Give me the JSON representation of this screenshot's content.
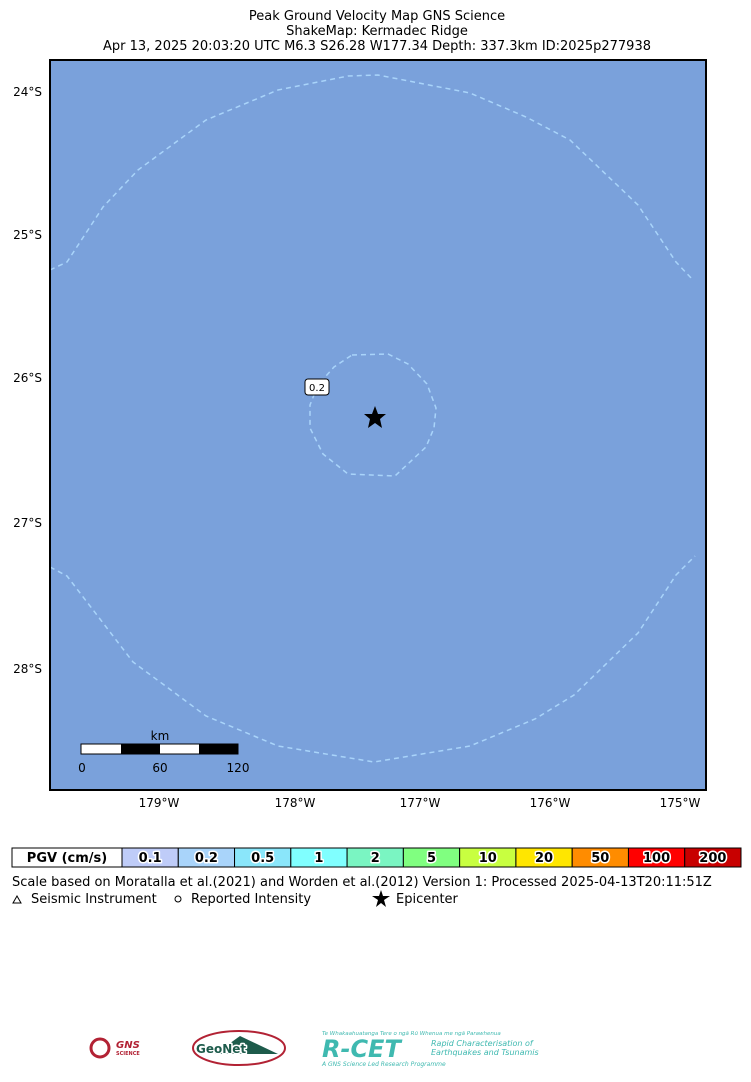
{
  "header": {
    "title": "Peak Ground Velocity Map GNS Science",
    "subtitle": "ShakeMap: Kermadec Ridge",
    "event": "Apr 13, 2025 20:03:20 UTC M6.3 S26.28 W177.34 Depth: 337.3km ID:2025p277938"
  },
  "map": {
    "lat_labels": [
      "24°S",
      "25°S",
      "26°S",
      "27°S",
      "28°S"
    ],
    "lon_labels": [
      "179°W",
      "178°W",
      "177°W",
      "176°W",
      "175°W"
    ],
    "contour_label": "0.2",
    "scale_bar": {
      "unit": "km",
      "ticks": [
        "0",
        "60",
        "120"
      ]
    },
    "water_color": "#7aa1db",
    "contour_color": "#a9d4fa"
  },
  "legend": {
    "title": "PGV (cm/s)",
    "bins": [
      {
        "label": "0.1",
        "color": "#bfccf8"
      },
      {
        "label": "0.2",
        "color": "#a9d4fa"
      },
      {
        "label": "0.5",
        "color": "#8ae6fa"
      },
      {
        "label": "1",
        "color": "#80ffff"
      },
      {
        "label": "2",
        "color": "#7af5c2"
      },
      {
        "label": "5",
        "color": "#80ff80"
      },
      {
        "label": "10",
        "color": "#c8ff40"
      },
      {
        "label": "20",
        "color": "#ffe600"
      },
      {
        "label": "50",
        "color": "#ff8c00"
      },
      {
        "label": "100",
        "color": "#ff0000"
      },
      {
        "label": "200",
        "color": "#c80000"
      }
    ],
    "note": "Scale based on Moratalla et al.(2021) and Worden et al.(2012)   Version 1: Processed 2025-04-13T20:11:51Z",
    "seismic": "Seismic Instrument",
    "reported": "Reported Intensity",
    "epicenter": "Epicenter"
  },
  "logos": {
    "gns": "GNS",
    "gns_sub": "SCIENCE",
    "geonet": "GeoNet",
    "rcet": "R-CET",
    "rcet_top": "Te Whakaahuatanga Tere o ngā Rū Whenua me ngā Parawhenua",
    "rcet_sub1": "Rapid Characterisation of",
    "rcet_sub2": "Earthquakes and Tsunamis",
    "rcet_foot": "A GNS Science Led Research Programme"
  }
}
